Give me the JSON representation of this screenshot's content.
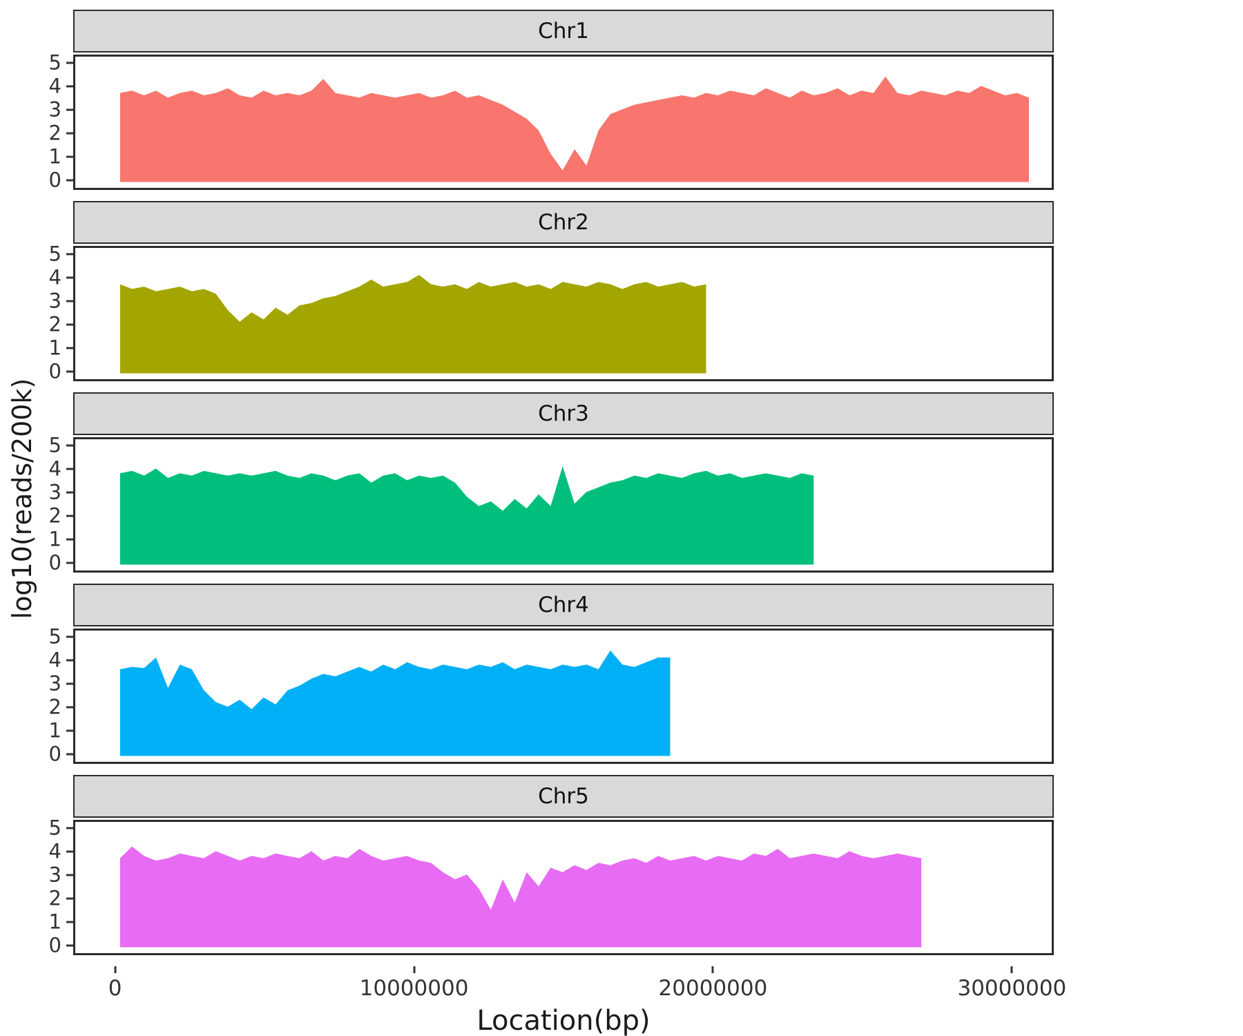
{
  "theme": {
    "strip_background": "#d9d9d9",
    "panel_border": "#2b2b2b",
    "axis_text_color": "#333333",
    "title_text_color": "#1a1a1a"
  },
  "chart_data": {
    "type": "area",
    "title": "",
    "xlabel": "Location(bp)",
    "ylabel": "log10(reads/200k)",
    "legend": "none",
    "grid": false,
    "x_domain": [
      -1400000,
      31400000
    ],
    "y_domain": [
      -0.25,
      5.35
    ],
    "x_ticks": [
      0,
      10000000,
      20000000,
      30000000
    ],
    "x_tick_labels": [
      "0",
      "10000000",
      "20000000",
      "30000000"
    ],
    "y_ticks": [
      0,
      1,
      2,
      3,
      4,
      5
    ],
    "y_tick_labels": [
      "0",
      "1",
      "2",
      "3",
      "4",
      "5"
    ],
    "bin_start_bp": 100000,
    "bin_step_bp": 400000,
    "facets": [
      {
        "label": "Chr1",
        "color": "#F8766D",
        "end_bp": 30500000,
        "values": [
          3.8,
          3.9,
          3.7,
          3.9,
          3.6,
          3.8,
          3.9,
          3.7,
          3.8,
          4.0,
          3.7,
          3.6,
          3.9,
          3.7,
          3.8,
          3.7,
          3.9,
          4.4,
          3.8,
          3.7,
          3.6,
          3.8,
          3.7,
          3.6,
          3.7,
          3.8,
          3.6,
          3.7,
          3.9,
          3.6,
          3.7,
          3.5,
          3.3,
          3.0,
          2.7,
          2.2,
          1.2,
          0.5,
          1.4,
          0.7,
          2.2,
          2.9,
          3.1,
          3.3,
          3.4,
          3.5,
          3.6,
          3.7,
          3.6,
          3.8,
          3.7,
          3.9,
          3.8,
          3.7,
          4.0,
          3.8,
          3.6,
          3.9,
          3.7,
          3.8,
          4.0,
          3.7,
          3.9,
          3.8,
          4.5,
          3.8,
          3.7,
          3.9,
          3.8,
          3.7,
          3.9,
          3.8,
          4.1,
          3.9,
          3.7,
          3.8,
          3.6
        ]
      },
      {
        "label": "Chr2",
        "color": "#A3A500",
        "end_bp": 19700000,
        "values": [
          3.8,
          3.6,
          3.7,
          3.5,
          3.6,
          3.7,
          3.5,
          3.6,
          3.4,
          2.7,
          2.2,
          2.6,
          2.3,
          2.8,
          2.5,
          2.9,
          3.0,
          3.2,
          3.3,
          3.5,
          3.7,
          4.0,
          3.7,
          3.8,
          3.9,
          4.2,
          3.8,
          3.7,
          3.8,
          3.6,
          3.9,
          3.7,
          3.8,
          3.9,
          3.7,
          3.8,
          3.6,
          3.9,
          3.8,
          3.7,
          3.9,
          3.8,
          3.6,
          3.8,
          3.9,
          3.7,
          3.8,
          3.9,
          3.7,
          3.8
        ]
      },
      {
        "label": "Chr3",
        "color": "#00BF7D",
        "end_bp": 23300000,
        "values": [
          3.9,
          4.0,
          3.8,
          4.1,
          3.7,
          3.9,
          3.8,
          4.0,
          3.9,
          3.8,
          3.9,
          3.8,
          3.9,
          4.0,
          3.8,
          3.7,
          3.9,
          3.8,
          3.6,
          3.8,
          3.9,
          3.5,
          3.8,
          3.9,
          3.6,
          3.8,
          3.7,
          3.8,
          3.5,
          2.9,
          2.5,
          2.7,
          2.3,
          2.8,
          2.4,
          3.0,
          2.5,
          4.2,
          2.6,
          3.1,
          3.3,
          3.5,
          3.6,
          3.8,
          3.7,
          3.9,
          3.8,
          3.7,
          3.9,
          4.0,
          3.8,
          3.9,
          3.7,
          3.8,
          3.9,
          3.8,
          3.7,
          3.9,
          3.8
        ]
      },
      {
        "label": "Chr4",
        "color": "#00B0F6",
        "end_bp": 18500000,
        "values": [
          3.7,
          3.8,
          3.75,
          4.2,
          2.9,
          3.9,
          3.7,
          2.8,
          2.3,
          2.1,
          2.4,
          2.0,
          2.5,
          2.2,
          2.8,
          3.0,
          3.3,
          3.5,
          3.4,
          3.6,
          3.8,
          3.6,
          3.9,
          3.7,
          4.0,
          3.8,
          3.7,
          3.9,
          3.8,
          3.7,
          3.9,
          3.8,
          4.0,
          3.7,
          3.9,
          3.8,
          3.7,
          3.9,
          3.8,
          3.9,
          3.7,
          4.5,
          3.9,
          3.8,
          4.0,
          4.2,
          4.2
        ]
      },
      {
        "label": "Chr5",
        "color": "#E76BF3",
        "end_bp": 26900000,
        "values": [
          3.8,
          4.3,
          3.9,
          3.7,
          3.8,
          4.0,
          3.9,
          3.8,
          4.1,
          3.9,
          3.7,
          3.9,
          3.8,
          4.0,
          3.9,
          3.8,
          4.1,
          3.7,
          3.9,
          3.8,
          4.2,
          3.9,
          3.7,
          3.8,
          3.9,
          3.7,
          3.6,
          3.2,
          2.9,
          3.1,
          2.5,
          1.6,
          2.9,
          1.9,
          3.2,
          2.6,
          3.4,
          3.2,
          3.5,
          3.3,
          3.6,
          3.5,
          3.7,
          3.8,
          3.6,
          3.9,
          3.7,
          3.8,
          3.9,
          3.7,
          3.9,
          3.8,
          3.7,
          4.0,
          3.9,
          4.2,
          3.8,
          3.9,
          4.0,
          3.9,
          3.8,
          4.1,
          3.9,
          3.8,
          3.9,
          4.0,
          3.9,
          3.8
        ]
      }
    ]
  }
}
